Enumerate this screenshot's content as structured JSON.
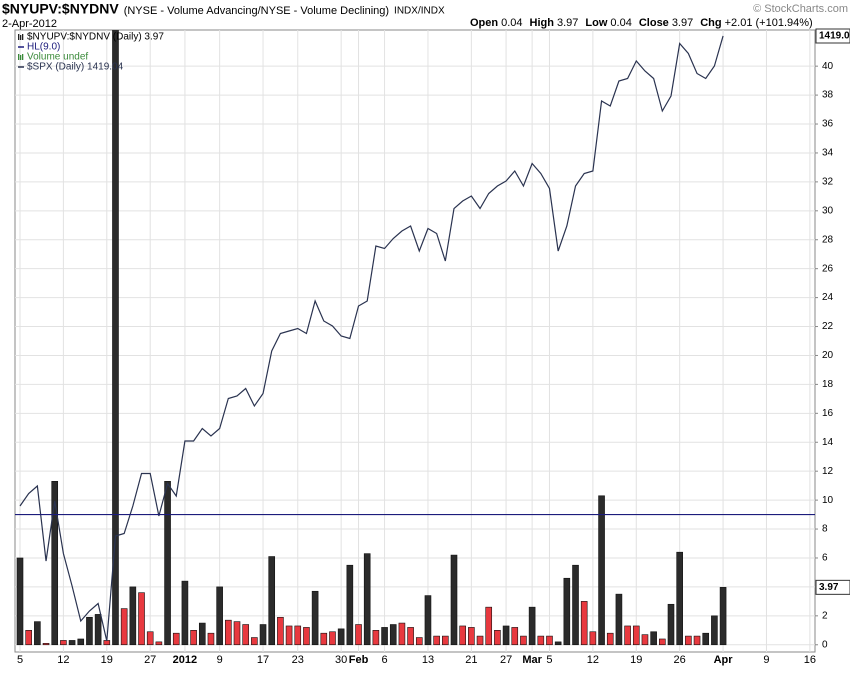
{
  "chart_data": {
    "type": "bar",
    "symbol": "$NYUPV:$NYDNV",
    "description": "(NYSE - Volume Advancing/NYSE - Volume Declining)",
    "exchange": "INDX/INDX",
    "date": "2-Apr-2012",
    "copyright": "© StockCharts.com",
    "stats": [
      {
        "label": "Open",
        "value": "0.04"
      },
      {
        "label": "High",
        "value": "3.97"
      },
      {
        "label": "Low",
        "value": "0.04"
      },
      {
        "label": "Close",
        "value": "3.97"
      },
      {
        "label": "Chg",
        "value": "+2.01 (+101.94%)"
      }
    ],
    "categories": [
      "5",
      null,
      null,
      null,
      null,
      "12",
      null,
      null,
      null,
      null,
      "19",
      null,
      null,
      null,
      null,
      "27",
      null,
      null,
      null,
      "2012",
      null,
      null,
      null,
      "9",
      null,
      null,
      null,
      null,
      "17",
      null,
      null,
      null,
      "23",
      null,
      null,
      null,
      null,
      "30",
      null,
      "Feb",
      null,
      null,
      "6",
      null,
      null,
      null,
      null,
      "13",
      null,
      null,
      null,
      null,
      "21",
      null,
      null,
      null,
      "27",
      null,
      null,
      "Mar",
      null,
      "5",
      null,
      null,
      null,
      null,
      "12",
      null,
      null,
      null,
      null,
      "19",
      null,
      null,
      null,
      null,
      "26",
      null,
      null,
      null,
      null,
      "Apr",
      null,
      null,
      null,
      null,
      "9",
      null,
      null,
      null,
      null,
      "16"
    ],
    "series": [
      {
        "name": "$NYUPV:$NYDNV (Daily) 3.97",
        "type": "bar",
        "last_label": "3.97",
        "values": [
          6.0,
          1.0,
          1.6,
          0.1,
          11.3,
          0.3,
          0.3,
          0.4,
          1.9,
          2.1,
          0.3,
          43,
          2.5,
          4.0,
          3.6,
          0.9,
          0.2,
          11.3,
          0.8,
          4.4,
          1.0,
          1.5,
          0.8,
          4.0,
          1.7,
          1.6,
          1.4,
          0.5,
          1.4,
          6.1,
          1.9,
          1.3,
          1.3,
          1.2,
          3.7,
          0.8,
          0.9,
          1.1,
          5.5,
          1.4,
          6.3,
          1.0,
          1.2,
          1.4,
          1.5,
          1.2,
          0.5,
          3.4,
          0.6,
          0.6,
          6.2,
          1.3,
          1.2,
          0.6,
          2.6,
          1.0,
          1.3,
          1.2,
          0.6,
          2.6,
          0.6,
          0.6,
          0.2,
          4.6,
          5.5,
          3.0,
          0.9,
          10.3,
          0.8,
          3.5,
          1.3,
          1.3,
          0.7,
          0.9,
          0.4,
          2.8,
          6.4,
          0.6,
          0.6,
          0.8,
          2.0,
          3.97,
          null,
          null,
          null,
          null,
          null,
          null,
          null,
          null,
          null,
          null
        ],
        "colors": [
          "#2b2b2b",
          "#e8393f",
          "#2b2b2b",
          "#e8393f",
          "#2b2b2b",
          "#e8393f",
          "#2b2b2b",
          "#2b2b2b",
          "#2b2b2b",
          "#2b2b2b",
          "#e8393f",
          "#2b2b2b",
          "#e8393f",
          "#2b2b2b",
          "#e8393f",
          "#e8393f",
          "#e8393f",
          "#2b2b2b",
          "#e8393f",
          "#2b2b2b",
          "#e8393f",
          "#2b2b2b",
          "#e8393f",
          "#2b2b2b",
          "#e8393f",
          "#e8393f",
          "#e8393f",
          "#e8393f",
          "#2b2b2b",
          "#2b2b2b",
          "#e8393f",
          "#e8393f",
          "#e8393f",
          "#e8393f",
          "#2b2b2b",
          "#e8393f",
          "#e8393f",
          "#2b2b2b",
          "#2b2b2b",
          "#e8393f",
          "#2b2b2b",
          "#e8393f",
          "#2b2b2b",
          "#2b2b2b",
          "#e8393f",
          "#e8393f",
          "#e8393f",
          "#2b2b2b",
          "#e8393f",
          "#e8393f",
          "#2b2b2b",
          "#e8393f",
          "#e8393f",
          "#e8393f",
          "#e8393f",
          "#e8393f",
          "#2b2b2b",
          "#e8393f",
          "#e8393f",
          "#2b2b2b",
          "#e8393f",
          "#e8393f",
          "#2b2b2b",
          "#2b2b2b",
          "#2b2b2b",
          "#e8393f",
          "#e8393f",
          "#2b2b2b",
          "#e8393f",
          "#2b2b2b",
          "#e8393f",
          "#e8393f",
          "#e8393f",
          "#2b2b2b",
          "#e8393f",
          "#2b2b2b",
          "#2b2b2b",
          "#e8393f",
          "#e8393f",
          "#2b2b2b",
          "#2b2b2b",
          "#2b2b2b",
          null,
          null,
          null,
          null,
          null,
          null,
          null,
          null,
          null,
          null
        ]
      },
      {
        "name": "$SPX (Daily) 1419.04",
        "type": "line",
        "axis": "y2",
        "color": "#2a3350",
        "last_label": "1419.0",
        "values": [
          1231,
          1236,
          1239,
          1209,
          1233,
          1212,
          1199,
          1185,
          1189,
          1192,
          1177,
          1219,
          1220,
          1231,
          1244,
          1244,
          1227,
          1240,
          1235,
          1257,
          1257,
          1262,
          1259,
          1262,
          1274,
          1275,
          1278,
          1271,
          1276,
          1293,
          1300,
          1301,
          1302,
          1300,
          1313,
          1305,
          1303,
          1299,
          1298,
          1311,
          1313,
          1335,
          1334,
          1338,
          1341,
          1343,
          1333,
          1342,
          1340,
          1329,
          1350,
          1353,
          1355,
          1350,
          1356,
          1359,
          1361,
          1365,
          1359,
          1368,
          1364,
          1358,
          1333,
          1343,
          1359,
          1364,
          1365,
          1393,
          1391,
          1401,
          1402,
          1409,
          1405,
          1402,
          1389,
          1395,
          1416,
          1412,
          1404,
          1402,
          1407,
          1419.04,
          null,
          null,
          null,
          null,
          null,
          null,
          null,
          null,
          null,
          null
        ]
      }
    ],
    "hline": {
      "name": "HL(9.0)",
      "value": 9.0,
      "color": "#1c1c7c"
    },
    "volume_label": "Volume undef",
    "ylim": [
      -0.5,
      42.5
    ],
    "yticks": [
      0,
      2,
      4,
      6,
      8,
      10,
      12,
      14,
      16,
      18,
      20,
      22,
      24,
      26,
      28,
      30,
      32,
      34,
      36,
      38,
      40
    ],
    "y2lim": [
      1172.6,
      1421.4
    ],
    "grid": true
  }
}
